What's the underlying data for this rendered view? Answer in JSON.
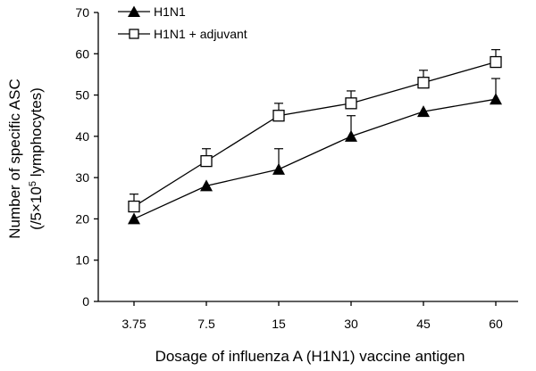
{
  "chart_data": {
    "type": "line",
    "categories": [
      "3.75",
      "7.5",
      "15",
      "30",
      "45",
      "60"
    ],
    "xlabel": "Dosage of influenza A (H1N1) vaccine antigen",
    "ylabel": {
      "line1": "Number of specific ASC",
      "line2_pre": "(/5×10",
      "line2_sup": "5",
      "line2_post": " lymphocytes)"
    },
    "ylim": [
      0,
      70
    ],
    "yticks": [
      0,
      10,
      20,
      30,
      40,
      50,
      60,
      70
    ],
    "grid": false,
    "legend_position": "top-left",
    "series": [
      {
        "name": "H1N1",
        "marker": "filled-triangle",
        "color": "#000000",
        "values": [
          20,
          28,
          32,
          40,
          46,
          49
        ],
        "error_upper": [
          0,
          0,
          5,
          5,
          0,
          5
        ]
      },
      {
        "name": "H1N1 + adjuvant",
        "marker": "open-square",
        "color": "#000000",
        "values": [
          23,
          34,
          45,
          48,
          53,
          58
        ],
        "error_upper": [
          3,
          3,
          3,
          3,
          3,
          3
        ]
      }
    ]
  }
}
